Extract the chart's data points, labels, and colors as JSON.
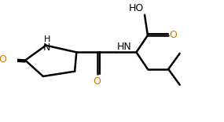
{
  "bg_color": "#ffffff",
  "bond_color": "#000000",
  "bond_width": 1.8,
  "dbo": 0.008,
  "o_color": "#cc7700",
  "font_size": 9,
  "fig_width": 2.85,
  "fig_height": 1.55,
  "xlim": [
    0,
    1
  ],
  "ylim": [
    0,
    1
  ]
}
